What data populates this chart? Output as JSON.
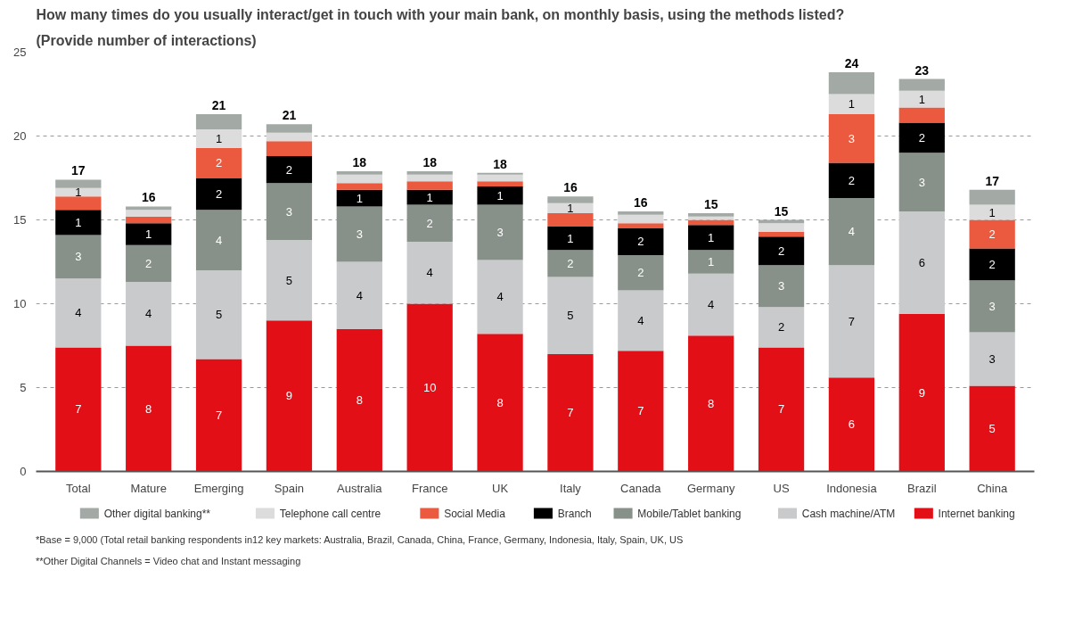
{
  "chart_data": {
    "type": "bar",
    "stacked": true,
    "title": "How many times do you usually interact/get in touch with your main bank, on monthly basis, using the methods listed?",
    "subtitle": "(Provide number of interactions)",
    "categories": [
      "Total",
      "Mature",
      "Emerging",
      "Spain",
      "Australia",
      "France",
      "UK",
      "Italy",
      "Canada",
      "Germany",
      "US",
      "Indonesia",
      "Brazil",
      "China"
    ],
    "series": [
      {
        "name": "Internet banking",
        "color": "#e30f17",
        "values": [
          7.4,
          7.5,
          6.7,
          9.0,
          8.5,
          10.0,
          8.2,
          7.0,
          7.2,
          8.1,
          7.4,
          5.6,
          9.4,
          5.1
        ],
        "value_labels": [
          "7",
          "8",
          "7",
          "9",
          "8",
          "10",
          "8",
          "7",
          "7",
          "8",
          "7",
          "6",
          "9",
          "5"
        ]
      },
      {
        "name": "Cash machine/ATM",
        "color": "#c9cacc",
        "values": [
          4.1,
          3.8,
          5.3,
          4.8,
          4.0,
          3.7,
          4.4,
          4.6,
          3.6,
          3.7,
          2.4,
          6.7,
          6.1,
          3.2
        ],
        "value_labels": [
          "4",
          "4",
          "5",
          "5",
          "4",
          "4",
          "4",
          "5",
          "4",
          "4",
          "2",
          "7",
          "6",
          "3"
        ]
      },
      {
        "name": "Mobile/Tablet banking",
        "color": "#879189",
        "values": [
          2.6,
          2.2,
          3.6,
          3.4,
          3.3,
          2.2,
          3.3,
          1.6,
          2.1,
          1.4,
          2.5,
          4.0,
          3.5,
          3.1
        ],
        "value_labels": [
          "3",
          "2",
          "4",
          "3",
          "3",
          "2",
          "3",
          "2",
          "2",
          "1",
          "3",
          "4",
          "3",
          "3"
        ]
      },
      {
        "name": "Branch",
        "color": "#000000",
        "values": [
          1.5,
          1.3,
          1.9,
          1.6,
          1.0,
          0.9,
          1.1,
          1.4,
          1.6,
          1.5,
          1.7,
          2.1,
          1.8,
          1.9
        ],
        "value_labels": [
          "1",
          "1",
          "2",
          "2",
          "1",
          "1",
          "1",
          "1",
          "2",
          "1",
          "2",
          "2",
          "2",
          "2"
        ]
      },
      {
        "name": "Social Media",
        "color": "#eb5a3f",
        "values": [
          0.8,
          0.4,
          1.8,
          0.9,
          0.4,
          0.5,
          0.3,
          0.8,
          0.3,
          0.3,
          0.3,
          2.9,
          0.9,
          1.7
        ],
        "value_labels": [
          null,
          null,
          "2",
          null,
          null,
          null,
          null,
          null,
          null,
          null,
          null,
          "3",
          null,
          "2"
        ]
      },
      {
        "name": "Telephone call centre",
        "color": "#dcdcdc",
        "values": [
          0.5,
          0.4,
          1.1,
          0.5,
          0.5,
          0.4,
          0.4,
          0.6,
          0.5,
          0.2,
          0.5,
          1.2,
          1.0,
          0.9
        ],
        "value_labels": [
          "1",
          null,
          "1",
          null,
          null,
          null,
          null,
          "1",
          null,
          null,
          null,
          "1",
          "1",
          "1"
        ]
      },
      {
        "name": "Other digital banking**",
        "color": "#a3aaa6",
        "values": [
          0.5,
          0.2,
          0.9,
          0.5,
          0.2,
          0.2,
          0.1,
          0.4,
          0.2,
          0.2,
          0.2,
          1.3,
          0.7,
          0.9
        ]
      }
    ],
    "totals": [
      "17",
      "16",
      "21",
      "21",
      "18",
      "18",
      "18",
      "16",
      "16",
      "15",
      "15",
      "24",
      "23",
      "17"
    ],
    "ylim": [
      0,
      25
    ],
    "yticks": [
      0,
      5,
      10,
      15,
      20,
      25
    ],
    "grid": "y",
    "legend": "bottom",
    "annotations": [
      "*Base = 9,000 (Total retail banking respondents in12 key markets: Australia, Brazil, Canada, China, France, Germany, Indonesia, Italy, Spain, UK, US",
      "**Other Digital Channels = Video chat and Instant messaging"
    ]
  }
}
